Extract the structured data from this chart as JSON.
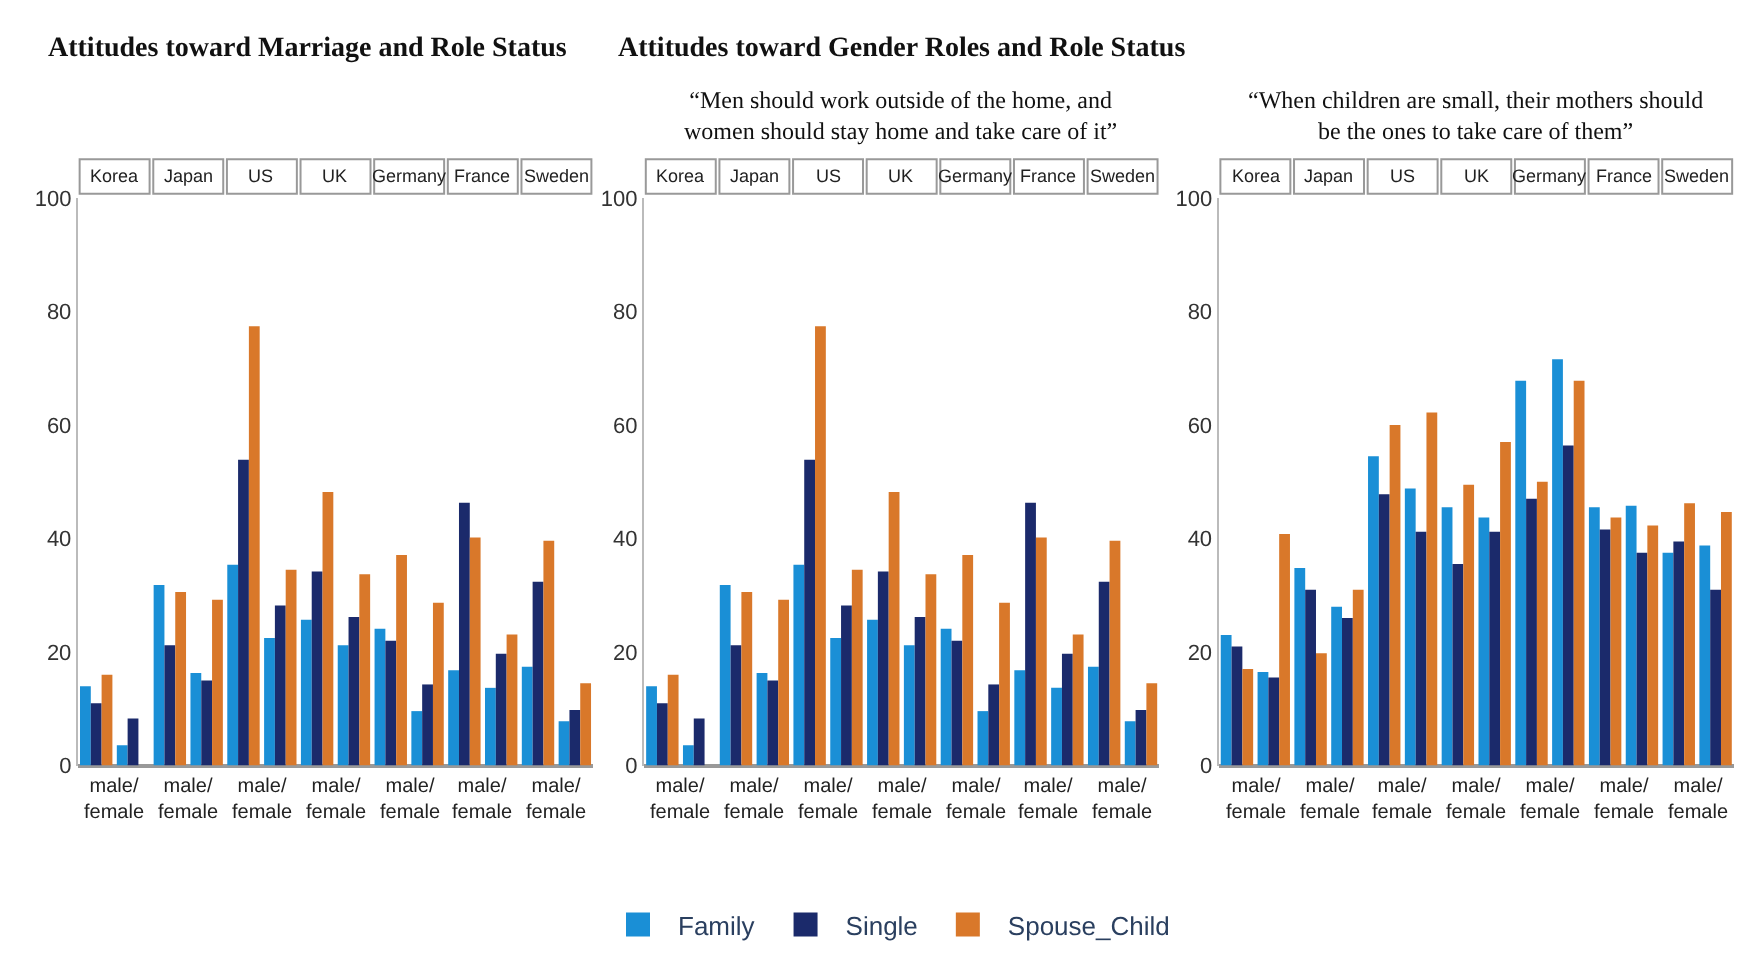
{
  "chart_data": [
    {
      "type": "bar",
      "title": "Attitudes toward Marriage and Role Status",
      "categories": [
        null,
        null,
        null,
        null,
        null,
        null,
        null,
        null,
        null,
        null,
        null,
        null,
        null,
        null
      ],
      "series": [
        {
          "name": "Family",
          "color": "#1a8fd6",
          "values": [
            14,
            3.6,
            31.8,
            16.3,
            35.4,
            22.5,
            25.7,
            21.2,
            24.1,
            9.6,
            16.8,
            13.7,
            17.4,
            7.8
          ]
        },
        {
          "name": "Single",
          "color": "#1b2a6b",
          "values": [
            11,
            8.3,
            21.2,
            15,
            53.9,
            28.2,
            34.2,
            26.2,
            22,
            14.3,
            46.3,
            19.7,
            32.4,
            9.8
          ]
        },
        {
          "name": "Spouse_Child",
          "color": "#d9782a",
          "values": [
            16,
            null,
            30.6,
            29.2,
            77.4,
            34.5,
            48.2,
            33.7,
            37.1,
            28.7,
            40.2,
            23.1,
            39.6,
            14.5
          ]
        }
      ],
      "ylim": [
        0,
        100
      ],
      "yticks": [
        0,
        20,
        40,
        60,
        80,
        100
      ],
      "legend": "bottom",
      "annotations": [
        "Korea",
        "male/\nfemale",
        "Japan",
        "male/\nfemale",
        "US",
        "male/\nfemale",
        "UK",
        "male/\nfemale",
        "Germany",
        "male/\nfemale",
        "France",
        "male/\nfemale",
        "Sweden",
        "male/\nfemale"
      ]
    },
    {
      "type": "bar",
      "title": "Attitudes toward Gender Roles and Role Status",
      "subtitle": "“Men should work outside of the home, and women should stay home and take care of it”",
      "categories": [
        null,
        null,
        null,
        null,
        null,
        null,
        null,
        null,
        null,
        null,
        null,
        null,
        null,
        null
      ],
      "series": [
        {
          "color": "#1a8fd6",
          "values": [
            14,
            3.6,
            31.8,
            16.3,
            35.4,
            22.5,
            25.7,
            21.2,
            24.1,
            9.6,
            16.8,
            13.7,
            17.4,
            7.8
          ]
        },
        {
          "color": "#1b2a6b",
          "values": [
            11,
            8.3,
            21.2,
            15,
            53.9,
            28.2,
            34.2,
            26.2,
            22,
            14.3,
            46.3,
            19.7,
            32.4,
            9.8
          ]
        },
        {
          "color": "#d9782a",
          "values": [
            16,
            null,
            30.6,
            29.2,
            77.4,
            34.5,
            48.2,
            33.7,
            37.1,
            28.7,
            40.2,
            23.1,
            39.6,
            14.5
          ]
        }
      ],
      "ylim": [
        0,
        100
      ],
      "yticks": [
        0,
        20,
        40,
        60,
        80,
        100
      ],
      "annotations": [
        "Korea",
        "male/\nfemale",
        "Japan",
        "male/\nfemale",
        "US",
        "male/\nfemale",
        "UK",
        "male/\nfemale",
        "Germany",
        "male/\nfemale",
        "France",
        "male/\nfemale",
        "Sweden",
        "male/\nfemale"
      ]
    },
    {
      "type": "bar",
      "subtitle": "“When children are small, their mothers should be the ones to take care of them”",
      "categories": [
        null,
        null,
        null,
        null,
        null,
        null,
        null,
        null,
        null,
        null,
        null,
        null,
        null,
        null
      ],
      "series": [
        {
          "color": "#1a8fd6",
          "values": [
            23,
            16.5,
            34.8,
            28,
            54.5,
            48.8,
            45.5,
            43.7,
            67.8,
            71.6,
            45.5,
            45.8,
            37.5,
            38.8
          ]
        },
        {
          "color": "#1b2a6b",
          "values": [
            21,
            15.5,
            31,
            26,
            47.8,
            41.2,
            35.5,
            41.2,
            47,
            56.4,
            41.6,
            37.5,
            39.5,
            31
          ]
        },
        {
          "color": "#d9782a",
          "values": [
            17,
            40.8,
            19.8,
            31,
            60,
            62.2,
            49.5,
            57,
            50,
            67.8,
            43.7,
            42.3,
            46.2,
            44.7
          ]
        }
      ],
      "ylim": [
        0,
        100
      ],
      "yticks": [
        0,
        20,
        40,
        60,
        80,
        100
      ],
      "annotations": [
        "Korea",
        "male/\nfemale",
        "Japan",
        "male/\nfemale",
        "US",
        "male/\nfemale",
        "UK",
        "male/\nfemale",
        "Germany",
        "male/\nfemale",
        "France",
        "male/\nfemale",
        "Sweden",
        "male/\nfemale"
      ]
    }
  ]
}
